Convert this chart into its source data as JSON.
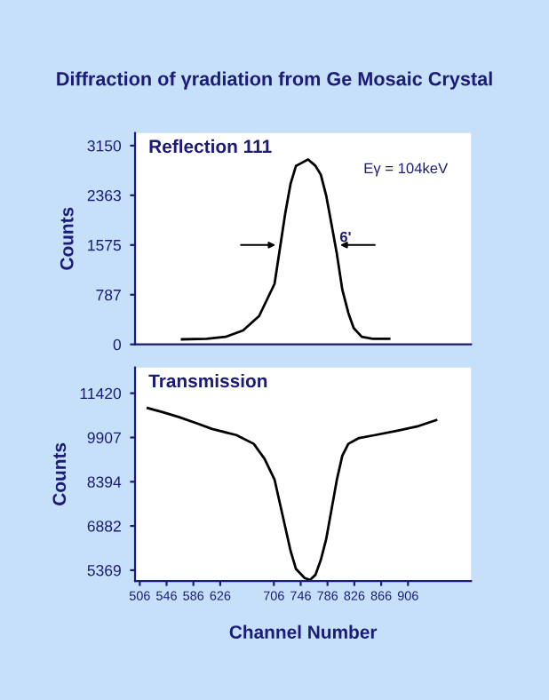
{
  "chart_data": [
    {
      "type": "line",
      "title": "Diffraction of γradiation from Ge Mosaic Crystal",
      "ylabel": "Counts",
      "x": [
        569,
        606,
        634,
        660,
        684,
        707,
        715,
        723,
        731,
        739,
        748,
        757,
        768,
        776,
        784,
        792,
        800,
        808,
        817,
        825,
        837,
        853,
        878
      ],
      "series": [
        {
          "color": "#000000",
          "values": [
            80,
            90,
            120,
            220,
            450,
            960,
            1520,
            2080,
            2550,
            2830,
            2880,
            2930,
            2830,
            2690,
            2360,
            1900,
            1430,
            870,
            500,
            260,
            120,
            90,
            90
          ]
        }
      ],
      "xlim": [
        499,
        1000
      ],
      "ylim": [
        0,
        3350
      ],
      "yticks": [
        0,
        787,
        1575,
        2363,
        3150
      ],
      "tick_labels": "y",
      "grid": false,
      "annotations": [
        "Reflection 111",
        "Eγ = 104keV",
        {
          "text": "6'",
          "x": 804,
          "y": 1575
        }
      ]
    },
    {
      "type": "line",
      "ylabel": "Counts",
      "xlabel": "Channel Number",
      "x": [
        518,
        541,
        565,
        590,
        614,
        650,
        676,
        692,
        707,
        715,
        723,
        731,
        739,
        752,
        760,
        768,
        776,
        784,
        792,
        800,
        808,
        817,
        833,
        857,
        890,
        922,
        948
      ],
      "series": [
        {
          "color": "#000000",
          "values": [
            10910,
            10770,
            10600,
            10400,
            10200,
            9990,
            9690,
            9180,
            8470,
            7650,
            6840,
            6020,
            5410,
            5100,
            5040,
            5210,
            5720,
            6430,
            7450,
            8470,
            9280,
            9690,
            9890,
            9990,
            10140,
            10300,
            10500
          ]
        }
      ],
      "xlim": [
        499,
        1000
      ],
      "ylim": [
        5000,
        12300
      ],
      "yticks": [
        5369,
        6882,
        8394,
        9907,
        11420
      ],
      "xticks": [
        506,
        546,
        586,
        626,
        706,
        746,
        786,
        826,
        866,
        906
      ],
      "grid": false,
      "annotations": [
        "Transmission"
      ]
    }
  ]
}
